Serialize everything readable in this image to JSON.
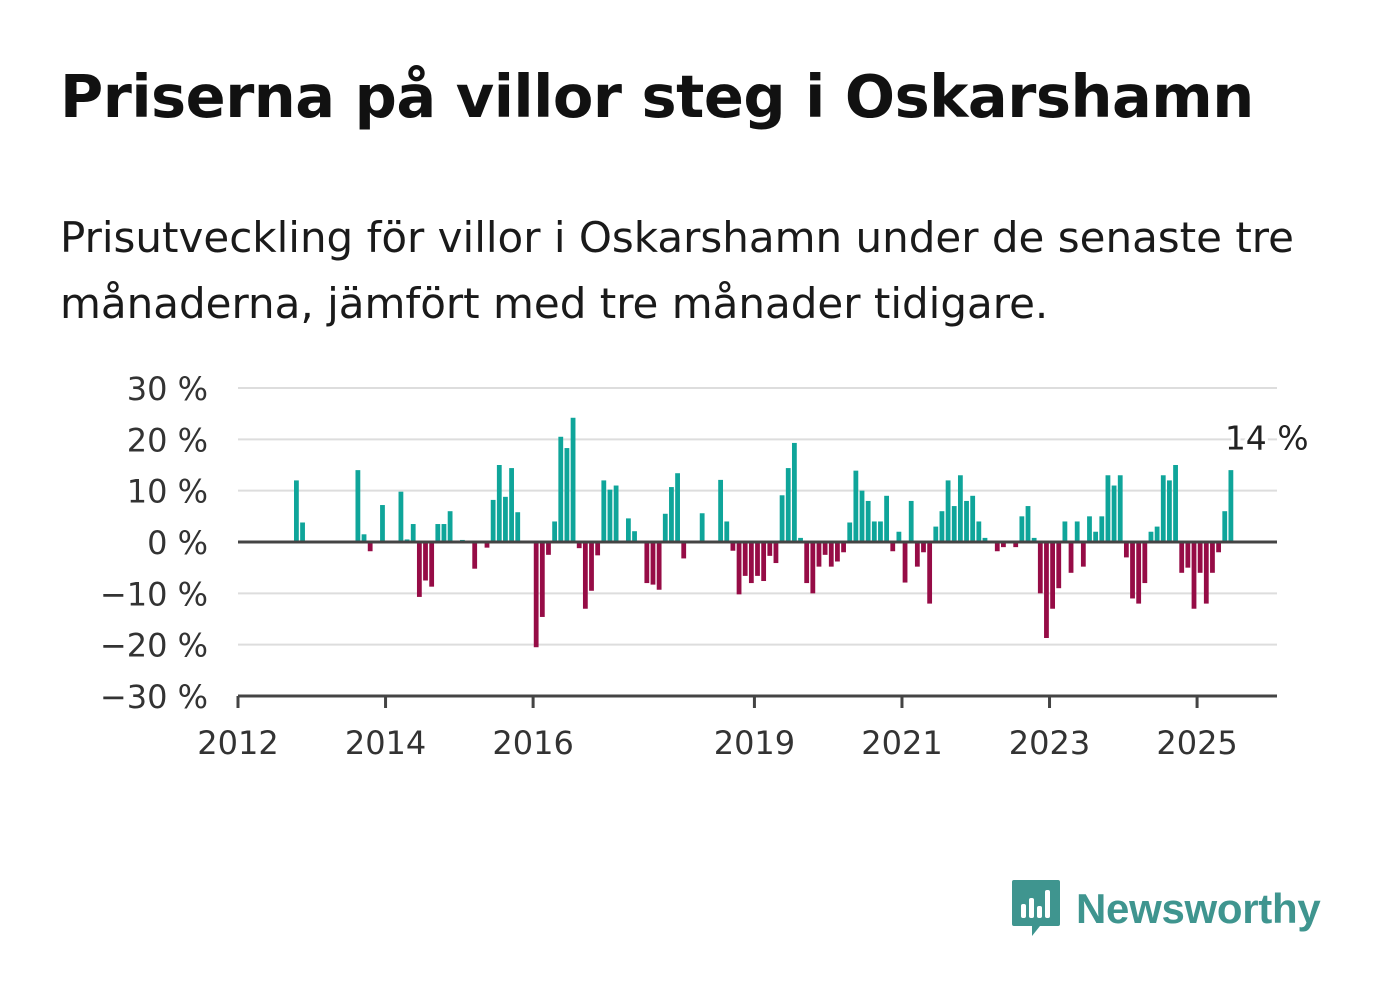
{
  "title": "Priserna på villor steg i Oskarshamn",
  "subtitle": "Prisutveckling för villor i Oskarshamn under de senaste tre månaderna, jämfört med tre månader tidigare.",
  "brand": {
    "name": "Newsworthy",
    "icon": "newsworthy-logo-icon",
    "color": "#3f958f"
  },
  "colors": {
    "positive": "#0fa59a",
    "negative": "#960c46",
    "grid": "#dddddd",
    "axis": "#444444"
  },
  "chart_data": {
    "type": "bar",
    "title": "",
    "xlabel": "",
    "ylabel": "",
    "ylim": [
      -30,
      30
    ],
    "y_ticks": [
      30,
      20,
      10,
      0,
      -10,
      -20,
      -30
    ],
    "y_tick_labels": [
      "30 %",
      "20 %",
      "10 %",
      "0 %",
      "−10 %",
      "−20 %",
      "−30 %"
    ],
    "x_range": [
      "2012-01",
      "2026-02"
    ],
    "x_ticks": [
      "2012",
      "2014",
      "2016",
      "2019",
      "2021",
      "2023",
      "2025"
    ],
    "grid": true,
    "annotation": {
      "text": "14 %",
      "month": "2025-05"
    },
    "series": [
      {
        "values": [
          {
            "month": "2012-10",
            "value": 12
          },
          {
            "month": "2012-11",
            "value": 3.8
          },
          {
            "month": "2013-08",
            "value": 14
          },
          {
            "month": "2013-09",
            "value": 1.5
          },
          {
            "month": "2013-10",
            "value": -1.8
          },
          {
            "month": "2013-12",
            "value": 7.2
          },
          {
            "month": "2014-03",
            "value": 9.8
          },
          {
            "month": "2014-04",
            "value": 0.5
          },
          {
            "month": "2014-05",
            "value": 3.5
          },
          {
            "month": "2014-06",
            "value": -10.7
          },
          {
            "month": "2014-07",
            "value": -7.5
          },
          {
            "month": "2014-08",
            "value": -8.7
          },
          {
            "month": "2014-09",
            "value": 3.5
          },
          {
            "month": "2014-10",
            "value": 3.5
          },
          {
            "month": "2014-11",
            "value": 6
          },
          {
            "month": "2015-01",
            "value": 0.4
          },
          {
            "month": "2015-03",
            "value": -5.2
          },
          {
            "month": "2015-05",
            "value": -1.1
          },
          {
            "month": "2015-06",
            "value": 8.2
          },
          {
            "month": "2015-07",
            "value": 15
          },
          {
            "month": "2015-08",
            "value": 8.8
          },
          {
            "month": "2015-09",
            "value": 14.4
          },
          {
            "month": "2015-10",
            "value": 5.8
          },
          {
            "month": "2016-01",
            "value": -20.5
          },
          {
            "month": "2016-02",
            "value": -14.6
          },
          {
            "month": "2016-03",
            "value": -2.5
          },
          {
            "month": "2016-04",
            "value": 4
          },
          {
            "month": "2016-05",
            "value": 20.5
          },
          {
            "month": "2016-06",
            "value": 18.3
          },
          {
            "month": "2016-07",
            "value": 24.2
          },
          {
            "month": "2016-08",
            "value": -1.2
          },
          {
            "month": "2016-09",
            "value": -13
          },
          {
            "month": "2016-10",
            "value": -9.5
          },
          {
            "month": "2016-11",
            "value": -2.6
          },
          {
            "month": "2016-12",
            "value": 12
          },
          {
            "month": "2017-01",
            "value": 10.2
          },
          {
            "month": "2017-02",
            "value": 11
          },
          {
            "month": "2017-04",
            "value": 4.6
          },
          {
            "month": "2017-05",
            "value": 2.1
          },
          {
            "month": "2017-07",
            "value": -8
          },
          {
            "month": "2017-08",
            "value": -8.3
          },
          {
            "month": "2017-09",
            "value": -9.3
          },
          {
            "month": "2017-10",
            "value": 5.5
          },
          {
            "month": "2017-11",
            "value": 10.7
          },
          {
            "month": "2017-12",
            "value": 13.4
          },
          {
            "month": "2018-01",
            "value": -3.2
          },
          {
            "month": "2018-04",
            "value": 5.6
          },
          {
            "month": "2018-07",
            "value": 12.1
          },
          {
            "month": "2018-08",
            "value": 4
          },
          {
            "month": "2018-09",
            "value": -1.7
          },
          {
            "month": "2018-10",
            "value": -10.2
          },
          {
            "month": "2018-11",
            "value": -6.6
          },
          {
            "month": "2018-12",
            "value": -8
          },
          {
            "month": "2019-01",
            "value": -6.6
          },
          {
            "month": "2019-02",
            "value": -7.6
          },
          {
            "month": "2019-03",
            "value": -2.7
          },
          {
            "month": "2019-04",
            "value": -4.1
          },
          {
            "month": "2019-05",
            "value": 9.1
          },
          {
            "month": "2019-06",
            "value": 14.4
          },
          {
            "month": "2019-07",
            "value": 19.3
          },
          {
            "month": "2019-08",
            "value": 0.8
          },
          {
            "month": "2019-09",
            "value": -8
          },
          {
            "month": "2019-10",
            "value": -10
          },
          {
            "month": "2019-11",
            "value": -4.8
          },
          {
            "month": "2019-12",
            "value": -2.5
          },
          {
            "month": "2020-01",
            "value": -4.8
          },
          {
            "month": "2020-02",
            "value": -3.8
          },
          {
            "month": "2020-03",
            "value": -2
          },
          {
            "month": "2020-04",
            "value": 3.8
          },
          {
            "month": "2020-05",
            "value": 13.9
          },
          {
            "month": "2020-06",
            "value": 10
          },
          {
            "month": "2020-07",
            "value": 8
          },
          {
            "month": "2020-08",
            "value": 4
          },
          {
            "month": "2020-09",
            "value": 4
          },
          {
            "month": "2020-10",
            "value": 9
          },
          {
            "month": "2020-11",
            "value": -1.8
          },
          {
            "month": "2020-12",
            "value": 2
          },
          {
            "month": "2021-01",
            "value": -7.9
          },
          {
            "month": "2021-02",
            "value": 8
          },
          {
            "month": "2021-03",
            "value": -4.8
          },
          {
            "month": "2021-04",
            "value": -2
          },
          {
            "month": "2021-05",
            "value": -12
          },
          {
            "month": "2021-06",
            "value": 3
          },
          {
            "month": "2021-07",
            "value": 6
          },
          {
            "month": "2021-08",
            "value": 12
          },
          {
            "month": "2021-09",
            "value": 7
          },
          {
            "month": "2021-10",
            "value": 13
          },
          {
            "month": "2021-11",
            "value": 8
          },
          {
            "month": "2021-12",
            "value": 9
          },
          {
            "month": "2022-01",
            "value": 4
          },
          {
            "month": "2022-02",
            "value": 0.8
          },
          {
            "month": "2022-04",
            "value": -1.8
          },
          {
            "month": "2022-05",
            "value": -1
          },
          {
            "month": "2022-07",
            "value": -1
          },
          {
            "month": "2022-08",
            "value": 5
          },
          {
            "month": "2022-09",
            "value": 7
          },
          {
            "month": "2022-10",
            "value": 0.8
          },
          {
            "month": "2022-11",
            "value": -10
          },
          {
            "month": "2022-12",
            "value": -18.7
          },
          {
            "month": "2023-01",
            "value": -13
          },
          {
            "month": "2023-02",
            "value": -9
          },
          {
            "month": "2023-03",
            "value": 4
          },
          {
            "month": "2023-04",
            "value": -6
          },
          {
            "month": "2023-05",
            "value": 4
          },
          {
            "month": "2023-06",
            "value": -4.8
          },
          {
            "month": "2023-07",
            "value": 5
          },
          {
            "month": "2023-08",
            "value": 2
          },
          {
            "month": "2023-09",
            "value": 5
          },
          {
            "month": "2023-10",
            "value": 13
          },
          {
            "month": "2023-11",
            "value": 11
          },
          {
            "month": "2023-12",
            "value": 13
          },
          {
            "month": "2024-01",
            "value": -3
          },
          {
            "month": "2024-02",
            "value": -11
          },
          {
            "month": "2024-03",
            "value": -12
          },
          {
            "month": "2024-04",
            "value": -8
          },
          {
            "month": "2024-05",
            "value": 2
          },
          {
            "month": "2024-06",
            "value": 3
          },
          {
            "month": "2024-07",
            "value": 13
          },
          {
            "month": "2024-08",
            "value": 12
          },
          {
            "month": "2024-09",
            "value": 15
          },
          {
            "month": "2024-10",
            "value": -6
          },
          {
            "month": "2024-11",
            "value": -5
          },
          {
            "month": "2024-12",
            "value": -13
          },
          {
            "month": "2025-01",
            "value": -6
          },
          {
            "month": "2025-02",
            "value": -12
          },
          {
            "month": "2025-03",
            "value": -6
          },
          {
            "month": "2025-04",
            "value": -2
          },
          {
            "month": "2025-05",
            "value": 6
          },
          {
            "month": "2025-06",
            "value": 14
          }
        ]
      }
    ]
  }
}
